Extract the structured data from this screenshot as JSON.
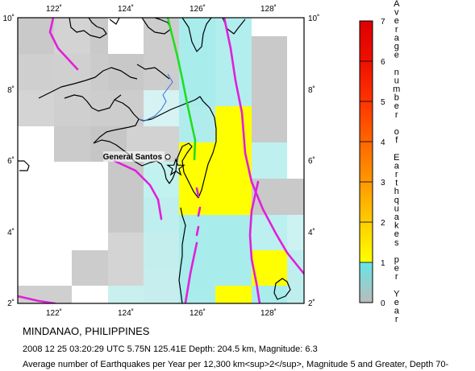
{
  "map": {
    "title": "MINDANAO, PHILIPPINES",
    "event": "2008 12 25 03:20:29 UTC 5.75N 125.41E Depth: 204.5 km, Magnitude: 6.3",
    "description": "Average number of Earthquakes per Year per 12,300 km<sup>2</sup>, Magnitude 5 and Greater, Depth 70-",
    "city": {
      "name": "General Santos",
      "lon": 125.2,
      "lat": 6.1
    },
    "epicenter": {
      "lon": 125.41,
      "lat": 5.75
    },
    "x_ticks": [
      {
        "value": 122,
        "label": "122˚"
      },
      {
        "value": 124,
        "label": "124˚"
      },
      {
        "value": 126,
        "label": "126˚"
      },
      {
        "value": 128,
        "label": "128˚"
      }
    ],
    "y_ticks": [
      {
        "value": 2,
        "label": "2˚"
      },
      {
        "value": 4,
        "label": "4˚"
      },
      {
        "value": 6,
        "label": "6˚"
      },
      {
        "value": 8,
        "label": "8˚"
      },
      {
        "value": 10,
        "label": "10˚"
      }
    ],
    "extent": {
      "lon": [
        121,
        129
      ],
      "lat": [
        2,
        10
      ]
    },
    "colors": {
      "gray": "#c9c9c9",
      "cyan": "#a8ecec",
      "pale": "#c2f2ef",
      "yellow": "#ffff00",
      "fault": "#e020d8",
      "green": "#22dd22",
      "river": "#3a6fd8"
    }
  },
  "colorbar": {
    "title_letters": [
      "A",
      "v",
      "e",
      "r",
      "a",
      "g",
      "e",
      "",
      "n",
      "u",
      "m",
      "b",
      "e",
      "r",
      "",
      "o",
      "f",
      "",
      "E",
      "a",
      "r",
      "t",
      "h",
      "q",
      "u",
      "a",
      "k",
      "e",
      "s",
      "",
      "p",
      "e",
      "r",
      "",
      "Y",
      "e",
      "a",
      "r"
    ],
    "ticks": [
      {
        "value": 0,
        "label": "0"
      },
      {
        "value": 1,
        "label": "1"
      },
      {
        "value": 2,
        "label": "2"
      },
      {
        "value": 3,
        "label": "3"
      },
      {
        "value": 4,
        "label": "4"
      },
      {
        "value": 5,
        "label": "5"
      },
      {
        "value": 6,
        "label": "6"
      },
      {
        "value": 7,
        "label": "7"
      }
    ],
    "stops": [
      {
        "value": 0,
        "color": "#bbbbbb"
      },
      {
        "value": 1,
        "color": "#66e6e6"
      },
      {
        "value": 1,
        "color": "#ffff00"
      },
      {
        "value": 2,
        "color": "#ffcc00"
      },
      {
        "value": 3,
        "color": "#ff9900"
      },
      {
        "value": 4,
        "color": "#ff6600"
      },
      {
        "value": 5,
        "color": "#ff3300"
      },
      {
        "value": 6,
        "color": "#ee1100"
      },
      {
        "value": 7,
        "color": "#dd0000"
      }
    ]
  }
}
